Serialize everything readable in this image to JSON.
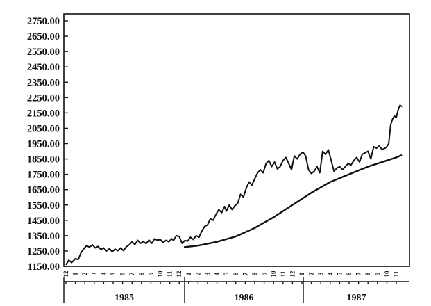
{
  "chart_data": {
    "type": "line",
    "title": "",
    "xlabel": "",
    "ylabel": "",
    "ylim": [
      1150,
      2800
    ],
    "y_ticks": [
      "2750.00",
      "2650.00",
      "2550.00",
      "2450.00",
      "2350.00",
      "2250.00",
      "2150.00",
      "2050.00",
      "1950.00",
      "1850.00",
      "1750.00",
      "1650.00",
      "1550.00",
      "1450.00",
      "1350.00",
      "1250.00",
      "1150.00"
    ],
    "x_month_ticks": [
      "12",
      "1",
      "2",
      "3",
      "4",
      "5",
      "6",
      "7",
      "8",
      "9",
      "10",
      "11",
      "12",
      "1",
      "2",
      "3",
      "4",
      "5",
      "6",
      "7",
      "8",
      "9",
      "10",
      "11",
      "12",
      "1",
      "2",
      "3",
      "4",
      "5",
      "6",
      "7",
      "8",
      "9",
      "10",
      "11"
    ],
    "x_years": [
      "1985",
      "1986",
      "1987"
    ],
    "x_start": 0,
    "x_end": 35.6,
    "grid": false,
    "series": [
      {
        "kind": "price",
        "points": [
          [
            0.0,
            1160
          ],
          [
            0.3,
            1190
          ],
          [
            0.6,
            1175
          ],
          [
            1.0,
            1200
          ],
          [
            1.3,
            1195
          ],
          [
            1.6,
            1240
          ],
          [
            1.9,
            1265
          ],
          [
            2.2,
            1285
          ],
          [
            2.5,
            1275
          ],
          [
            2.8,
            1290
          ],
          [
            3.1,
            1270
          ],
          [
            3.4,
            1280
          ],
          [
            3.7,
            1260
          ],
          [
            4.0,
            1270
          ],
          [
            4.3,
            1250
          ],
          [
            4.6,
            1265
          ],
          [
            4.9,
            1245
          ],
          [
            5.2,
            1262
          ],
          [
            5.5,
            1252
          ],
          [
            5.8,
            1270
          ],
          [
            6.1,
            1252
          ],
          [
            6.4,
            1278
          ],
          [
            6.7,
            1290
          ],
          [
            7.0,
            1310
          ],
          [
            7.3,
            1292
          ],
          [
            7.6,
            1320
          ],
          [
            7.9,
            1300
          ],
          [
            8.2,
            1312
          ],
          [
            8.5,
            1298
          ],
          [
            8.8,
            1322
          ],
          [
            9.1,
            1300
          ],
          [
            9.4,
            1330
          ],
          [
            9.7,
            1320
          ],
          [
            10.0,
            1325
          ],
          [
            10.3,
            1305
          ],
          [
            10.6,
            1320
          ],
          [
            10.9,
            1310
          ],
          [
            11.2,
            1330
          ],
          [
            11.4,
            1318
          ],
          [
            11.7,
            1350
          ],
          [
            12.0,
            1345
          ],
          [
            12.3,
            1300
          ],
          [
            12.6,
            1318
          ],
          [
            12.9,
            1315
          ],
          [
            13.2,
            1340
          ],
          [
            13.5,
            1325
          ],
          [
            13.8,
            1350
          ],
          [
            14.1,
            1340
          ],
          [
            14.4,
            1380
          ],
          [
            14.7,
            1410
          ],
          [
            15.0,
            1420
          ],
          [
            15.3,
            1460
          ],
          [
            15.6,
            1450
          ],
          [
            15.9,
            1490
          ],
          [
            16.2,
            1520
          ],
          [
            16.5,
            1500
          ],
          [
            16.8,
            1540
          ],
          [
            17.0,
            1510
          ],
          [
            17.3,
            1550
          ],
          [
            17.6,
            1520
          ],
          [
            17.9,
            1545
          ],
          [
            18.2,
            1560
          ],
          [
            18.5,
            1620
          ],
          [
            18.8,
            1600
          ],
          [
            19.1,
            1660
          ],
          [
            19.4,
            1700
          ],
          [
            19.7,
            1680
          ],
          [
            20.0,
            1720
          ],
          [
            20.3,
            1760
          ],
          [
            20.6,
            1780
          ],
          [
            20.9,
            1760
          ],
          [
            21.2,
            1820
          ],
          [
            21.5,
            1840
          ],
          [
            21.8,
            1800
          ],
          [
            22.1,
            1830
          ],
          [
            22.4,
            1785
          ],
          [
            22.7,
            1800
          ],
          [
            23.0,
            1840
          ],
          [
            23.3,
            1860
          ],
          [
            23.6,
            1820
          ],
          [
            23.9,
            1780
          ],
          [
            24.2,
            1870
          ],
          [
            24.5,
            1850
          ],
          [
            24.8,
            1880
          ],
          [
            25.1,
            1895
          ],
          [
            25.4,
            1870
          ],
          [
            25.7,
            1780
          ],
          [
            26.0,
            1755
          ],
          [
            26.3,
            1770
          ],
          [
            26.6,
            1800
          ],
          [
            26.9,
            1760
          ],
          [
            27.2,
            1900
          ],
          [
            27.5,
            1880
          ],
          [
            27.8,
            1910
          ],
          [
            28.1,
            1840
          ],
          [
            28.4,
            1770
          ],
          [
            28.7,
            1790
          ],
          [
            29.0,
            1800
          ],
          [
            29.3,
            1780
          ],
          [
            29.6,
            1800
          ],
          [
            29.9,
            1820
          ],
          [
            30.2,
            1810
          ],
          [
            30.5,
            1840
          ],
          [
            30.8,
            1860
          ],
          [
            31.1,
            1830
          ],
          [
            31.4,
            1880
          ],
          [
            31.7,
            1890
          ],
          [
            32.0,
            1900
          ],
          [
            32.3,
            1850
          ],
          [
            32.6,
            1930
          ],
          [
            32.9,
            1920
          ],
          [
            33.2,
            1935
          ],
          [
            33.5,
            1910
          ],
          [
            33.8,
            1920
          ],
          [
            34.0,
            1930
          ],
          [
            34.2,
            1950
          ],
          [
            34.4,
            2070
          ],
          [
            34.6,
            2110
          ],
          [
            34.8,
            2130
          ],
          [
            35.0,
            2120
          ],
          [
            35.2,
            2170
          ],
          [
            35.4,
            2200
          ],
          [
            35.6,
            2190
          ]
        ]
      },
      {
        "kind": "moving-average",
        "points": [
          [
            12.5,
            1275
          ],
          [
            14,
            1285
          ],
          [
            16,
            1310
          ],
          [
            18,
            1345
          ],
          [
            20,
            1400
          ],
          [
            22,
            1470
          ],
          [
            24,
            1550
          ],
          [
            26,
            1630
          ],
          [
            28,
            1700
          ],
          [
            30,
            1750
          ],
          [
            32,
            1800
          ],
          [
            34,
            1840
          ],
          [
            35,
            1860
          ],
          [
            35.6,
            1875
          ]
        ]
      }
    ]
  }
}
